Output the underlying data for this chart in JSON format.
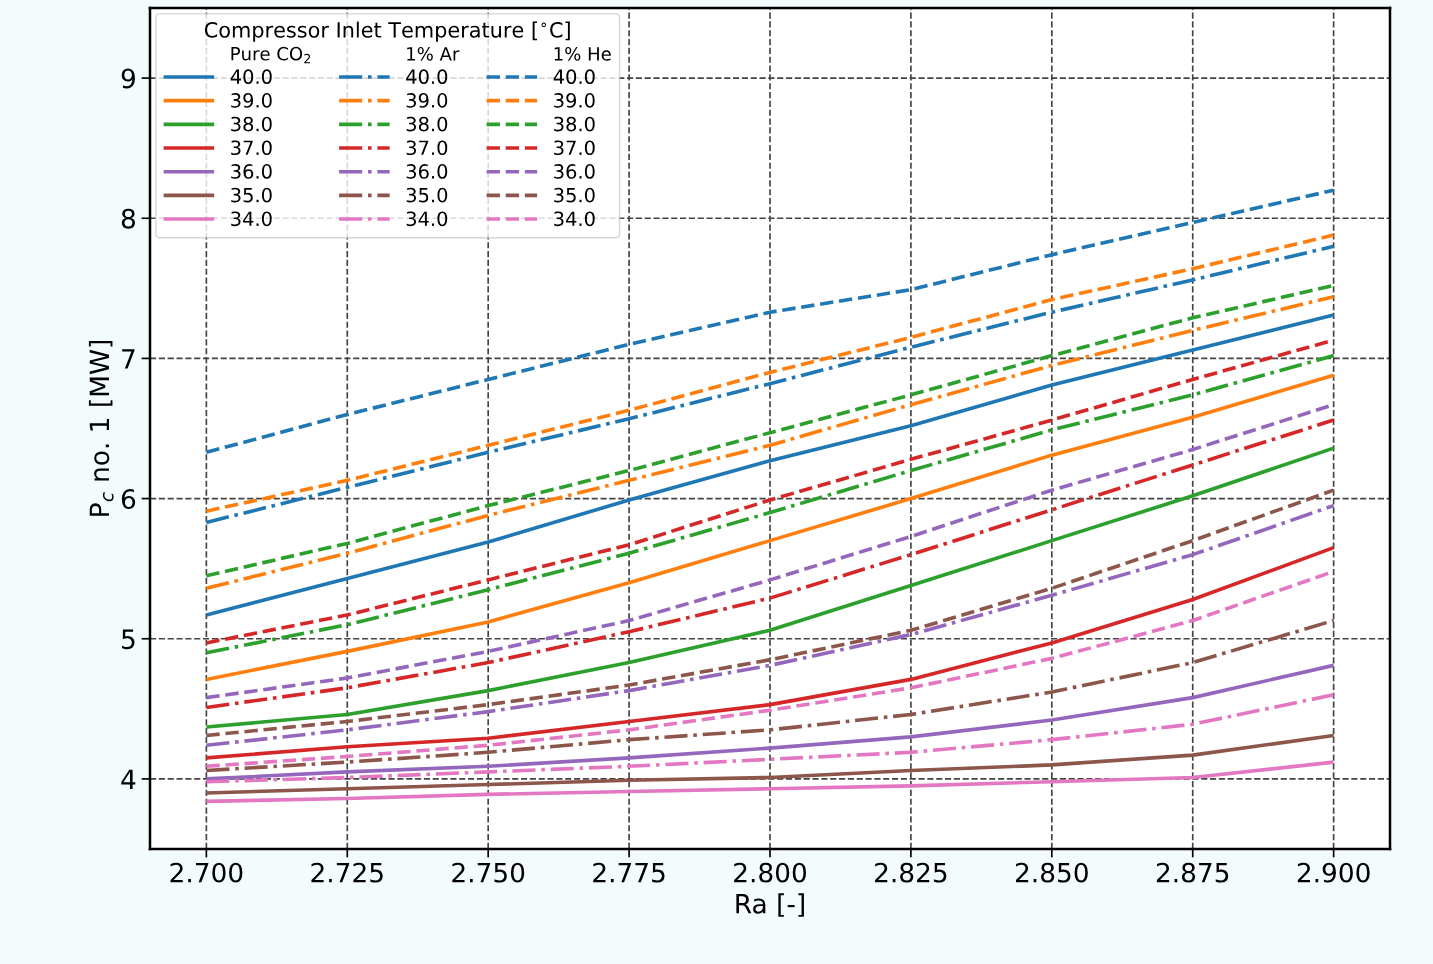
{
  "chart_data": {
    "type": "line",
    "xlabel": "Ra [-]",
    "ylabel": "P$_{c}$ no. 1 [MW]",
    "legend_title": "Compressor Inlet Temperature [$^{∘}$C]",
    "annotations": [
      "Pure CO$_{2}$",
      "1% Ar",
      "1% He"
    ],
    "x": [
      2.7,
      2.725,
      2.75,
      2.775,
      2.8,
      2.825,
      2.85,
      2.875,
      2.9
    ],
    "xlim": [
      2.69,
      2.91
    ],
    "xticks": [
      {
        "value": 2.7,
        "label": "2.700"
      },
      {
        "value": 2.725,
        "label": "2.725"
      },
      {
        "value": 2.75,
        "label": "2.750"
      },
      {
        "value": 2.775,
        "label": "2.775"
      },
      {
        "value": 2.8,
        "label": "2.800"
      },
      {
        "value": 2.825,
        "label": "2.825"
      },
      {
        "value": 2.85,
        "label": "2.850"
      },
      {
        "value": 2.875,
        "label": "2.875"
      },
      {
        "value": 2.9,
        "label": "2.900"
      }
    ],
    "ylim": [
      3.5,
      9.5
    ],
    "yticks": [
      4,
      5,
      6,
      7,
      8,
      9
    ],
    "grid": true,
    "legend": "top left",
    "marker": "none",
    "series": [
      {
        "name": "40.0",
        "color": "#1f77b4",
        "line_style": "solid",
        "values": [
          5.17,
          5.43,
          5.69,
          5.99,
          6.27,
          6.52,
          6.81,
          7.06,
          7.31
        ]
      },
      {
        "name": "39.0",
        "color": "#ff7f0e",
        "line_style": "solid",
        "values": [
          4.71,
          4.91,
          5.12,
          5.4,
          5.7,
          6.0,
          6.31,
          6.58,
          6.88
        ]
      },
      {
        "name": "38.0",
        "color": "#2ca02c",
        "line_style": "solid",
        "values": [
          4.37,
          4.46,
          4.63,
          4.83,
          5.06,
          5.38,
          5.7,
          6.02,
          6.36
        ]
      },
      {
        "name": "37.0",
        "color": "#d62728",
        "line_style": "solid",
        "values": [
          4.15,
          4.23,
          4.29,
          4.41,
          4.53,
          4.71,
          4.97,
          5.28,
          5.65
        ]
      },
      {
        "name": "36.0",
        "color": "#9467bd",
        "line_style": "solid",
        "values": [
          4.0,
          4.05,
          4.09,
          4.15,
          4.22,
          4.3,
          4.42,
          4.58,
          4.81
        ]
      },
      {
        "name": "35.0",
        "color": "#8c564b",
        "line_style": "solid",
        "values": [
          3.9,
          3.93,
          3.96,
          3.99,
          4.01,
          4.06,
          4.1,
          4.17,
          4.31
        ]
      },
      {
        "name": "34.0",
        "color": "#e377c2",
        "line_style": "solid",
        "values": [
          3.84,
          3.86,
          3.89,
          3.91,
          3.93,
          3.95,
          3.98,
          4.01,
          4.12
        ]
      },
      {
        "name": "40.0",
        "color": "#1f77b4",
        "line_style": "dashdot",
        "values": [
          5.83,
          6.08,
          6.33,
          6.57,
          6.82,
          7.08,
          7.33,
          7.56,
          7.8
        ]
      },
      {
        "name": "39.0",
        "color": "#ff7f0e",
        "line_style": "dashdot",
        "values": [
          5.36,
          5.61,
          5.88,
          6.13,
          6.38,
          6.67,
          6.95,
          7.2,
          7.44
        ]
      },
      {
        "name": "38.0",
        "color": "#2ca02c",
        "line_style": "dashdot",
        "values": [
          4.9,
          5.1,
          5.35,
          5.61,
          5.9,
          6.2,
          6.49,
          6.74,
          7.02
        ]
      },
      {
        "name": "37.0",
        "color": "#d62728",
        "line_style": "dashdot",
        "values": [
          4.51,
          4.65,
          4.83,
          5.05,
          5.29,
          5.6,
          5.92,
          6.24,
          6.56
        ]
      },
      {
        "name": "36.0",
        "color": "#9467bd",
        "line_style": "dashdot",
        "values": [
          4.24,
          4.35,
          4.48,
          4.63,
          4.81,
          5.03,
          5.31,
          5.6,
          5.95
        ]
      },
      {
        "name": "35.0",
        "color": "#8c564b",
        "line_style": "dashdot",
        "values": [
          4.06,
          4.12,
          4.19,
          4.28,
          4.35,
          4.46,
          4.62,
          4.83,
          5.13
        ]
      },
      {
        "name": "34.0",
        "color": "#e377c2",
        "line_style": "dashdot",
        "values": [
          3.98,
          4.01,
          4.05,
          4.09,
          4.14,
          4.19,
          4.28,
          4.39,
          4.6
        ]
      },
      {
        "name": "40.0",
        "color": "#1f77b4",
        "line_style": "dashed",
        "values": [
          6.33,
          6.6,
          6.85,
          7.1,
          7.33,
          7.49,
          7.74,
          7.97,
          8.2
        ]
      },
      {
        "name": "39.0",
        "color": "#ff7f0e",
        "line_style": "dashed",
        "values": [
          5.91,
          6.13,
          6.38,
          6.63,
          6.9,
          7.15,
          7.42,
          7.64,
          7.88
        ]
      },
      {
        "name": "38.0",
        "color": "#2ca02c",
        "line_style": "dashed",
        "values": [
          5.45,
          5.68,
          5.95,
          6.2,
          6.47,
          6.74,
          7.02,
          7.29,
          7.52
        ]
      },
      {
        "name": "37.0",
        "color": "#d62728",
        "line_style": "dashed",
        "values": [
          4.97,
          5.17,
          5.42,
          5.67,
          5.99,
          6.28,
          6.56,
          6.85,
          7.13
        ]
      },
      {
        "name": "36.0",
        "color": "#9467bd",
        "line_style": "dashed",
        "values": [
          4.58,
          4.72,
          4.91,
          5.13,
          5.42,
          5.73,
          6.06,
          6.35,
          6.67
        ]
      },
      {
        "name": "35.0",
        "color": "#8c564b",
        "line_style": "dashed",
        "values": [
          4.31,
          4.41,
          4.53,
          4.67,
          4.85,
          5.06,
          5.36,
          5.7,
          6.06
        ]
      },
      {
        "name": "34.0",
        "color": "#e377c2",
        "line_style": "dashed",
        "values": [
          4.09,
          4.16,
          4.24,
          4.35,
          4.49,
          4.65,
          4.86,
          5.13,
          5.48
        ]
      }
    ]
  }
}
